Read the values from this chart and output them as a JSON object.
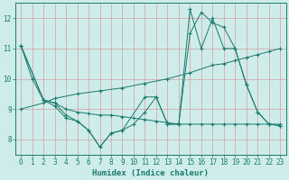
{
  "title": "",
  "xlabel": "Humidex (Indice chaleur)",
  "ylabel": "",
  "bg_color": "#ceecea",
  "line_color": "#1a7a6e",
  "grid_color_v": "#d4a0a0",
  "grid_color_h": "#d4a0a0",
  "axis_color": "#1a7a6e",
  "xlim": [
    -0.5,
    23.5
  ],
  "ylim": [
    7.5,
    12.5
  ],
  "yticks": [
    8,
    9,
    10,
    11,
    12
  ],
  "xticks": [
    0,
    1,
    2,
    3,
    4,
    5,
    6,
    7,
    8,
    9,
    10,
    11,
    12,
    13,
    14,
    15,
    16,
    17,
    18,
    19,
    20,
    21,
    22,
    23
  ],
  "lines": [
    {
      "x": [
        0,
        1,
        2,
        3,
        4,
        5,
        6,
        7,
        8,
        9,
        10,
        11,
        12,
        13,
        14,
        15,
        16,
        17,
        18,
        19,
        20,
        21,
        22,
        23
      ],
      "y": [
        11.1,
        10.0,
        9.3,
        9.2,
        9.0,
        8.9,
        8.85,
        8.8,
        8.8,
        8.75,
        8.7,
        8.65,
        8.6,
        8.55,
        8.5,
        8.5,
        8.5,
        8.5,
        8.5,
        8.5,
        8.5,
        8.5,
        8.5,
        8.5
      ]
    },
    {
      "x": [
        0,
        2,
        3,
        4,
        5,
        6,
        7,
        8,
        9,
        10,
        11,
        12,
        13,
        14,
        15,
        16,
        17,
        18,
        19,
        20,
        21,
        22,
        23
      ],
      "y": [
        11.1,
        9.3,
        9.2,
        8.8,
        8.6,
        8.3,
        7.75,
        8.2,
        8.3,
        8.5,
        8.9,
        9.4,
        8.5,
        8.5,
        11.5,
        12.2,
        11.85,
        11.7,
        11.0,
        9.8,
        8.9,
        8.5,
        8.45
      ]
    },
    {
      "x": [
        0,
        2,
        3,
        4,
        5,
        6,
        7,
        8,
        9,
        11,
        12,
        13,
        14,
        15,
        16,
        17,
        18,
        19,
        20,
        21,
        22,
        23
      ],
      "y": [
        11.1,
        9.3,
        9.1,
        8.7,
        8.6,
        8.3,
        7.75,
        8.2,
        8.3,
        9.4,
        9.4,
        8.5,
        8.5,
        12.3,
        11.0,
        12.0,
        11.0,
        11.0,
        9.8,
        8.9,
        8.5,
        8.45
      ]
    },
    {
      "x": [
        0,
        2,
        3,
        5,
        7,
        9,
        11,
        13,
        15,
        17,
        18,
        19,
        20,
        21,
        22,
        23
      ],
      "y": [
        9.0,
        9.2,
        9.35,
        9.5,
        9.6,
        9.7,
        9.85,
        10.0,
        10.2,
        10.45,
        10.5,
        10.6,
        10.7,
        10.8,
        10.9,
        11.0
      ]
    }
  ]
}
